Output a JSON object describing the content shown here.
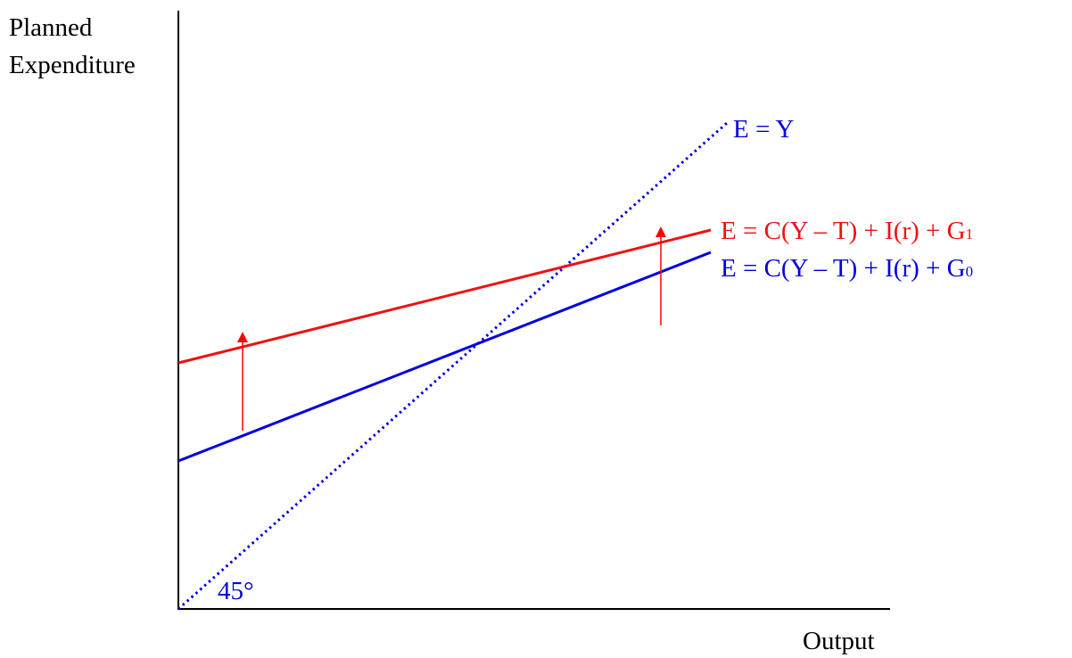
{
  "axes": {
    "y_label": [
      "Planned",
      "Expenditure"
    ],
    "x_label": "Output"
  },
  "lines": [
    {
      "label": "E = Y"
    },
    {
      "label": "E = C(Y – T) + I(r) + G",
      "subscript": "1"
    },
    {
      "label": "E = C(Y – T) + I(r) + G",
      "subscript": "0"
    }
  ],
  "angle_label": "45°"
}
